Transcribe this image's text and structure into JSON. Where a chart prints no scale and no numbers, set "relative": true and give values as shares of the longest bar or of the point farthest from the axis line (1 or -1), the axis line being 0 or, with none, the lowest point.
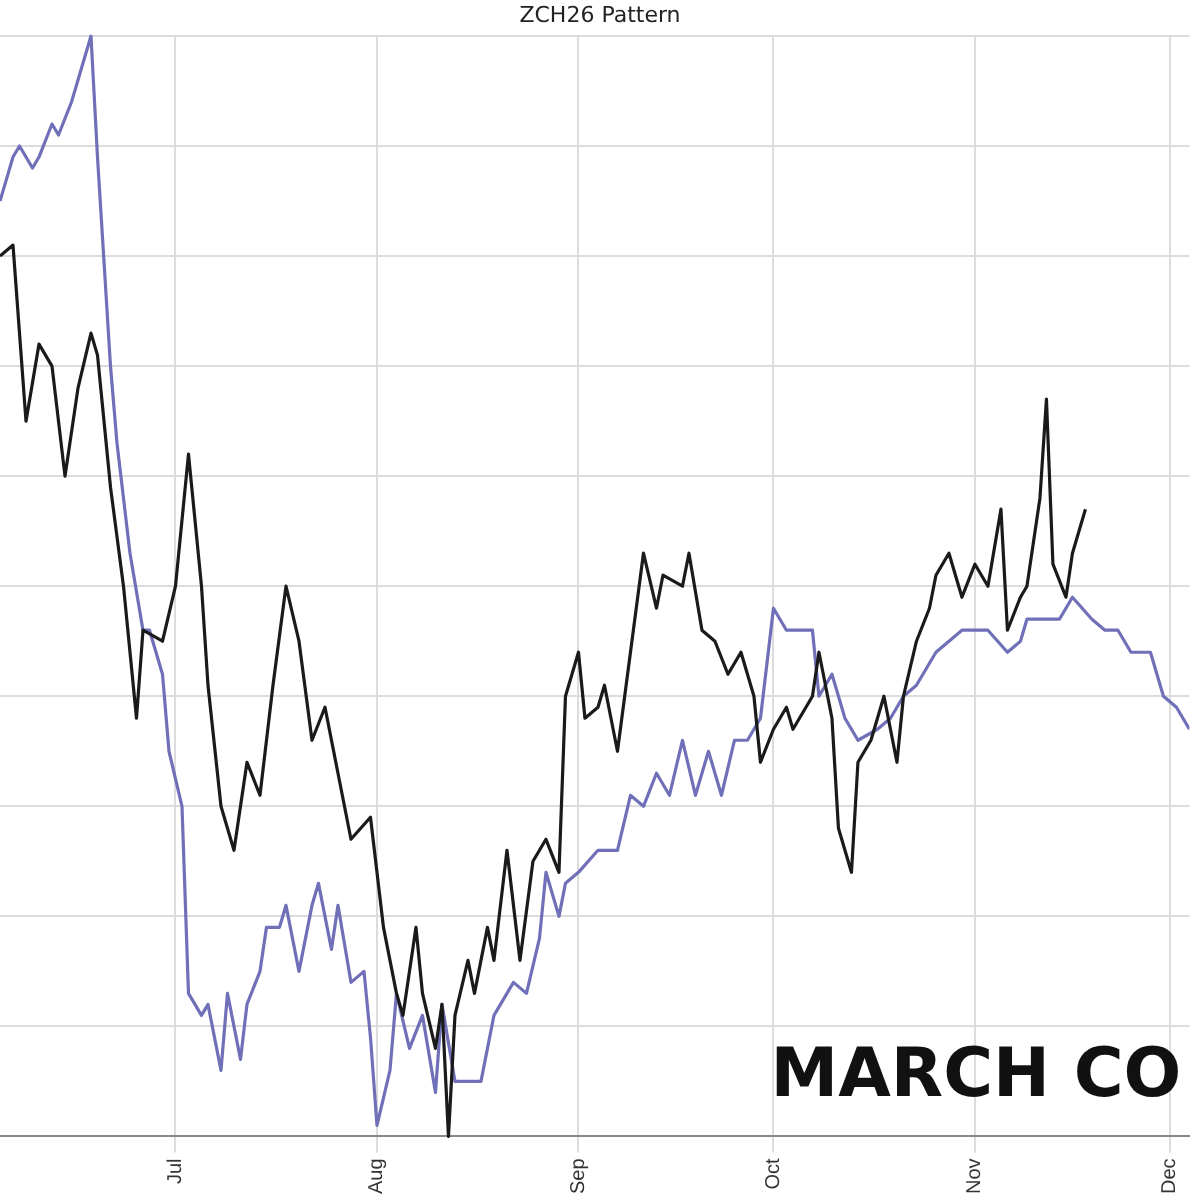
{
  "chart_data": {
    "type": "line",
    "title": "ZCH26  Pattern",
    "relative": true,
    "grid": true,
    "legend": false,
    "marker": "none",
    "line_style": "solid",
    "annotations": [
      "MARCH CO"
    ],
    "xlim": [
      "--06-04",
      "--12-04"
    ],
    "xticks": [
      {
        "value": "--07-01",
        "label": "Jul"
      },
      {
        "value": "--08-01",
        "label": "Aug"
      },
      {
        "value": "--09-01",
        "label": "Sep"
      },
      {
        "value": "--10-01",
        "label": "Oct"
      },
      {
        "value": "--11-01",
        "label": "Nov"
      },
      {
        "value": "--12-01",
        "label": "Dec"
      }
    ],
    "series": [
      {
        "color": "#1a1a1a",
        "x": [
          "--06-04",
          "--06-06",
          "--06-08",
          "--06-10",
          "--06-12",
          "--06-14",
          "--06-16",
          "--06-18",
          "--06-19",
          "--06-21",
          "--06-23",
          "--06-25",
          "--06-26",
          "--06-29",
          "--07-01",
          "--07-03",
          "--07-05",
          "--07-06",
          "--07-08",
          "--07-10",
          "--07-12",
          "--07-14",
          "--07-16",
          "--07-18",
          "--07-20",
          "--07-22",
          "--07-24",
          "--07-26",
          "--07-28",
          "--07-31",
          "--08-02",
          "--08-04",
          "--08-05",
          "--08-07",
          "--08-08",
          "--08-10",
          "--08-11",
          "--08-12",
          "--08-13",
          "--08-15",
          "--08-16",
          "--08-18",
          "--08-19",
          "--08-21",
          "--08-23",
          "--08-25",
          "--08-27",
          "--08-29",
          "--08-30",
          "--09-01",
          "--09-02",
          "--09-04",
          "--09-05",
          "--09-07",
          "--09-09",
          "--09-11",
          "--09-13",
          "--09-14",
          "--09-17",
          "--09-18",
          "--09-20",
          "--09-22",
          "--09-24",
          "--09-26",
          "--09-28",
          "--09-29",
          "--10-01",
          "--10-03",
          "--10-04",
          "--10-07",
          "--10-08",
          "--10-10",
          "--10-11",
          "--10-13",
          "--10-14",
          "--10-16",
          "--10-18",
          "--10-20",
          "--10-21",
          "--10-23",
          "--10-25",
          "--10-26",
          "--10-28",
          "--10-30",
          "--11-01",
          "--11-03",
          "--11-05",
          "--11-06",
          "--11-08",
          "--11-09",
          "--11-11",
          "--11-12",
          "--11-13",
          "--11-15",
          "--11-16",
          "--11-18"
        ],
        "values": [
          0.8,
          0.81,
          0.65,
          0.72,
          0.7,
          0.6,
          0.68,
          0.73,
          0.71,
          0.59,
          0.5,
          0.38,
          0.46,
          0.45,
          0.5,
          0.62,
          0.5,
          0.41,
          0.3,
          0.26,
          0.34,
          0.31,
          0.41,
          0.5,
          0.45,
          0.36,
          0.39,
          0.33,
          0.27,
          0.29,
          0.19,
          0.13,
          0.11,
          0.19,
          0.13,
          0.08,
          0.12,
          0,
          0.11,
          0.16,
          0.13,
          0.19,
          0.16,
          0.26,
          0.16,
          0.25,
          0.27,
          0.24,
          0.4,
          0.44,
          0.38,
          0.39,
          0.41,
          0.35,
          0.44,
          0.53,
          0.48,
          0.51,
          0.5,
          0.53,
          0.46,
          0.45,
          0.42,
          0.44,
          0.4,
          0.34,
          0.37,
          0.39,
          0.37,
          0.4,
          0.44,
          0.38,
          0.28,
          0.24,
          0.34,
          0.36,
          0.4,
          0.34,
          0.4,
          0.45,
          0.48,
          0.51,
          0.53,
          0.49,
          0.52,
          0.5,
          0.57,
          0.46,
          0.49,
          0.5,
          0.58,
          0.67,
          0.52,
          0.49,
          0.53,
          0.57
        ]
      },
      {
        "color": "#7070b8",
        "x": [
          "--06-04",
          "--06-06",
          "--06-07",
          "--06-09",
          "--06-10",
          "--06-12",
          "--06-13",
          "--06-15",
          "--06-16",
          "--06-18",
          "--06-19",
          "--06-21",
          "--06-22",
          "--06-24",
          "--06-26",
          "--06-27",
          "--06-29",
          "--06-30",
          "--07-02",
          "--07-03",
          "--07-05",
          "--07-06",
          "--07-08",
          "--07-09",
          "--07-11",
          "--07-12",
          "--07-14",
          "--07-15",
          "--07-17",
          "--07-18",
          "--07-20",
          "--07-22",
          "--07-23",
          "--07-25",
          "--07-26",
          "--07-28",
          "--07-30",
          "--07-31",
          "--08-01",
          "--08-03",
          "--08-04",
          "--08-06",
          "--08-08",
          "--08-10",
          "--08-11",
          "--08-13",
          "--08-15",
          "--08-17",
          "--08-19",
          "--08-22",
          "--08-24",
          "--08-26",
          "--08-27",
          "--08-29",
          "--08-30",
          "--09-01",
          "--09-04",
          "--09-07",
          "--09-09",
          "--09-11",
          "--09-13",
          "--09-15",
          "--09-17",
          "--09-19",
          "--09-21",
          "--09-23",
          "--09-25",
          "--09-27",
          "--09-29",
          "--10-01",
          "--10-03",
          "--10-04",
          "--10-07",
          "--10-08",
          "--10-10",
          "--10-12",
          "--10-14",
          "--10-17",
          "--10-19",
          "--10-21",
          "--10-23",
          "--10-26",
          "--10-28",
          "--10-30",
          "--11-01",
          "--11-03",
          "--11-06",
          "--11-08",
          "--11-09",
          "--11-12",
          "--11-14",
          "--11-16",
          "--11-19",
          "--11-21",
          "--11-23",
          "--11-25",
          "--11-28",
          "--11-30",
          "--12-02",
          "--12-04"
        ],
        "values": [
          0.85,
          0.89,
          0.9,
          0.88,
          0.89,
          0.92,
          0.91,
          0.94,
          0.96,
          1,
          0.89,
          0.7,
          0.63,
          0.53,
          0.46,
          0.46,
          0.42,
          0.35,
          0.3,
          0.13,
          0.11,
          0.12,
          0.06,
          0.13,
          0.07,
          0.12,
          0.15,
          0.19,
          0.19,
          0.21,
          0.15,
          0.21,
          0.23,
          0.17,
          0.21,
          0.14,
          0.15,
          0.09,
          0.01,
          0.06,
          0.13,
          0.08,
          0.11,
          0.04,
          0.12,
          0.05,
          0.05,
          0.05,
          0.11,
          0.14,
          0.13,
          0.18,
          0.24,
          0.2,
          0.23,
          0.24,
          0.26,
          0.26,
          0.31,
          0.3,
          0.33,
          0.31,
          0.36,
          0.31,
          0.35,
          0.31,
          0.36,
          0.36,
          0.38,
          0.48,
          0.46,
          0.46,
          0.46,
          0.4,
          0.42,
          0.38,
          0.36,
          0.37,
          0.38,
          0.4,
          0.41,
          0.44,
          0.45,
          0.46,
          0.46,
          0.46,
          0.44,
          0.45,
          0.47,
          0.47,
          0.47,
          0.49,
          0.47,
          0.46,
          0.46,
          0.44,
          0.44,
          0.4,
          0.39,
          0.37
        ]
      }
    ]
  }
}
